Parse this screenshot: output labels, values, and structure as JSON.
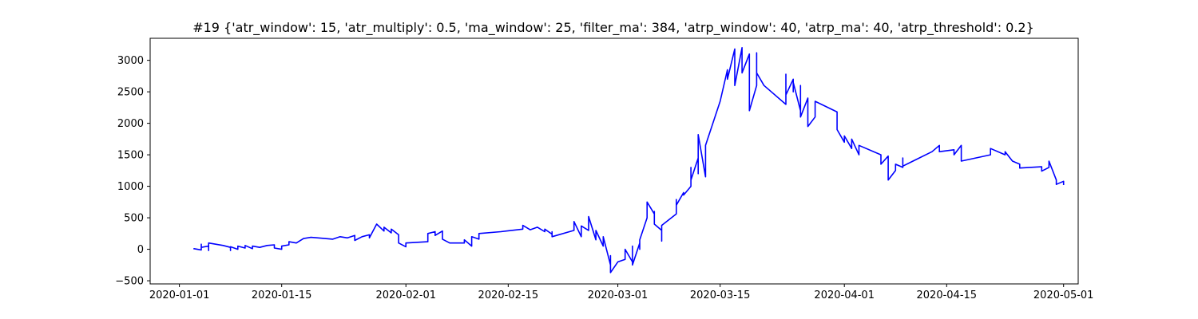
{
  "chart_data": {
    "type": "line",
    "title": "#19 {'atr_window': 15, 'atr_multiply': 0.5, 'ma_window': 25, 'filter_ma': 384, 'atrp_window': 40, 'atrp_ma': 40, 'atrp_threshold': 0.2}",
    "xlabel": "",
    "ylabel": "",
    "x_axis_type": "date",
    "xlim": [
      "2019-12-28",
      "2020-05-03"
    ],
    "ylim": [
      -550,
      3350
    ],
    "grid": false,
    "legend": "none",
    "x_ticks": [
      "2020-01-01",
      "2020-01-15",
      "2020-02-01",
      "2020-02-15",
      "2020-03-01",
      "2020-03-15",
      "2020-04-01",
      "2020-04-15",
      "2020-05-01"
    ],
    "y_ticks": [
      -500,
      0,
      500,
      1000,
      1500,
      2000,
      2500,
      3000
    ],
    "series": [
      {
        "color": "#0000ff",
        "points": [
          [
            "2020-01-03",
            0
          ],
          [
            "2020-01-03",
            10
          ],
          [
            "2020-01-04",
            -10
          ],
          [
            "2020-01-04",
            80
          ],
          [
            "2020-01-04",
            30
          ],
          [
            "2020-01-05",
            50
          ],
          [
            "2020-01-05",
            -20
          ],
          [
            "2020-01-05",
            20
          ],
          [
            "2020-01-05",
            100
          ],
          [
            "2020-01-07",
            60
          ],
          [
            "2020-01-08",
            30
          ],
          [
            "2020-01-08",
            -20
          ],
          [
            "2020-01-08",
            40
          ],
          [
            "2020-01-09",
            0
          ],
          [
            "2020-01-09",
            50
          ],
          [
            "2020-01-10",
            20
          ],
          [
            "2020-01-10",
            60
          ],
          [
            "2020-01-11",
            10
          ],
          [
            "2020-01-11",
            50
          ],
          [
            "2020-01-12",
            30
          ],
          [
            "2020-01-13",
            60
          ],
          [
            "2020-01-14",
            70
          ],
          [
            "2020-01-14",
            20
          ],
          [
            "2020-01-15",
            0
          ],
          [
            "2020-01-15",
            50
          ],
          [
            "2020-01-16",
            70
          ],
          [
            "2020-01-16",
            120
          ],
          [
            "2020-01-17",
            100
          ],
          [
            "2020-01-18",
            170
          ],
          [
            "2020-01-19",
            190
          ],
          [
            "2020-01-20",
            180
          ],
          [
            "2020-01-22",
            160
          ],
          [
            "2020-01-23",
            200
          ],
          [
            "2020-01-24",
            180
          ],
          [
            "2020-01-25",
            220
          ],
          [
            "2020-01-25",
            140
          ],
          [
            "2020-01-26",
            200
          ],
          [
            "2020-01-27",
            230
          ],
          [
            "2020-01-27",
            180
          ],
          [
            "2020-01-28",
            400
          ],
          [
            "2020-01-29",
            290
          ],
          [
            "2020-01-29",
            350
          ],
          [
            "2020-01-30",
            260
          ],
          [
            "2020-01-30",
            320
          ],
          [
            "2020-01-31",
            230
          ],
          [
            "2020-01-31",
            100
          ],
          [
            "2020-02-01",
            40
          ],
          [
            "2020-02-01",
            100
          ],
          [
            "2020-02-04",
            120
          ],
          [
            "2020-02-04",
            250
          ],
          [
            "2020-02-05",
            280
          ],
          [
            "2020-02-05",
            220
          ],
          [
            "2020-02-06",
            290
          ],
          [
            "2020-02-06",
            160
          ],
          [
            "2020-02-07",
            100
          ],
          [
            "2020-02-09",
            100
          ],
          [
            "2020-02-09",
            150
          ],
          [
            "2020-02-10",
            50
          ],
          [
            "2020-02-10",
            200
          ],
          [
            "2020-02-11",
            160
          ],
          [
            "2020-02-11",
            250
          ],
          [
            "2020-02-14",
            280
          ],
          [
            "2020-02-17",
            320
          ],
          [
            "2020-02-17",
            380
          ],
          [
            "2020-02-18",
            310
          ],
          [
            "2020-02-19",
            350
          ],
          [
            "2020-02-20",
            280
          ],
          [
            "2020-02-20",
            320
          ],
          [
            "2020-02-21",
            240
          ],
          [
            "2020-02-21",
            280
          ],
          [
            "2020-02-21",
            200
          ],
          [
            "2020-02-24",
            300
          ],
          [
            "2020-02-24",
            440
          ],
          [
            "2020-02-25",
            200
          ],
          [
            "2020-02-25",
            370
          ],
          [
            "2020-02-26",
            300
          ],
          [
            "2020-02-26",
            520
          ],
          [
            "2020-02-27",
            150
          ],
          [
            "2020-02-27",
            300
          ],
          [
            "2020-02-28",
            50
          ],
          [
            "2020-02-28",
            200
          ],
          [
            "2020-02-29",
            -250
          ],
          [
            "2020-02-29",
            -100
          ],
          [
            "2020-02-29",
            -370
          ],
          [
            "2020-03-01",
            -200
          ],
          [
            "2020-03-02",
            -160
          ],
          [
            "2020-03-02",
            0
          ],
          [
            "2020-03-03",
            -200
          ],
          [
            "2020-03-03",
            50
          ],
          [
            "2020-03-03",
            -250
          ],
          [
            "2020-03-04",
            100
          ],
          [
            "2020-03-04",
            0
          ],
          [
            "2020-03-04",
            150
          ],
          [
            "2020-03-05",
            500
          ],
          [
            "2020-03-05",
            750
          ],
          [
            "2020-03-06",
            560
          ],
          [
            "2020-03-06",
            600
          ],
          [
            "2020-03-06",
            400
          ],
          [
            "2020-03-07",
            300
          ],
          [
            "2020-03-07",
            350
          ],
          [
            "2020-03-07",
            130
          ],
          [
            "2020-03-07",
            380
          ],
          [
            "2020-03-09",
            560
          ],
          [
            "2020-03-09",
            790
          ],
          [
            "2020-03-09",
            700
          ],
          [
            "2020-03-10",
            900
          ],
          [
            "2020-03-10",
            860
          ],
          [
            "2020-03-11",
            1000
          ],
          [
            "2020-03-11",
            1300
          ],
          [
            "2020-03-11",
            1100
          ],
          [
            "2020-03-12",
            1450
          ],
          [
            "2020-03-12",
            1200
          ],
          [
            "2020-03-12",
            1820
          ],
          [
            "2020-03-13",
            1150
          ],
          [
            "2020-03-13",
            1450
          ],
          [
            "2020-03-13",
            1650
          ],
          [
            "2020-03-15",
            2350
          ],
          [
            "2020-03-16",
            2850
          ],
          [
            "2020-03-16",
            2700
          ],
          [
            "2020-03-17",
            3180
          ],
          [
            "2020-03-17",
            2600
          ],
          [
            "2020-03-18",
            3200
          ],
          [
            "2020-03-18",
            2800
          ],
          [
            "2020-03-19",
            3100
          ],
          [
            "2020-03-19",
            2550
          ],
          [
            "2020-03-19",
            2200
          ],
          [
            "2020-03-20",
            2600
          ],
          [
            "2020-03-20",
            3120
          ],
          [
            "2020-03-20",
            2800
          ],
          [
            "2020-03-21",
            2600
          ],
          [
            "2020-03-24",
            2300
          ],
          [
            "2020-03-24",
            2780
          ],
          [
            "2020-03-24",
            2450
          ],
          [
            "2020-03-25",
            2700
          ],
          [
            "2020-03-25",
            2500
          ],
          [
            "2020-03-25",
            2650
          ],
          [
            "2020-03-26",
            2200
          ],
          [
            "2020-03-26",
            2600
          ],
          [
            "2020-03-26",
            2100
          ],
          [
            "2020-03-27",
            2400
          ],
          [
            "2020-03-27",
            1950
          ],
          [
            "2020-03-28",
            2100
          ],
          [
            "2020-03-28",
            2350
          ],
          [
            "2020-03-31",
            2180
          ],
          [
            "2020-03-31",
            1900
          ],
          [
            "2020-04-01",
            1700
          ],
          [
            "2020-04-01",
            1800
          ],
          [
            "2020-04-02",
            1600
          ],
          [
            "2020-04-02",
            1750
          ],
          [
            "2020-04-03",
            1500
          ],
          [
            "2020-04-03",
            1650
          ],
          [
            "2020-04-06",
            1500
          ],
          [
            "2020-04-06",
            1350
          ],
          [
            "2020-04-07",
            1480
          ],
          [
            "2020-04-07",
            1250
          ],
          [
            "2020-04-07",
            1100
          ],
          [
            "2020-04-08",
            1250
          ],
          [
            "2020-04-08",
            1350
          ],
          [
            "2020-04-09",
            1300
          ],
          [
            "2020-04-09",
            1450
          ],
          [
            "2020-04-09",
            1320
          ],
          [
            "2020-04-13",
            1550
          ],
          [
            "2020-04-14",
            1650
          ],
          [
            "2020-04-14",
            1550
          ],
          [
            "2020-04-16",
            1580
          ],
          [
            "2020-04-16",
            1500
          ],
          [
            "2020-04-17",
            1650
          ],
          [
            "2020-04-17",
            1400
          ],
          [
            "2020-04-21",
            1500
          ],
          [
            "2020-04-21",
            1600
          ],
          [
            "2020-04-23",
            1500
          ],
          [
            "2020-04-23",
            1550
          ],
          [
            "2020-04-24",
            1400
          ],
          [
            "2020-04-25",
            1350
          ],
          [
            "2020-04-25",
            1290
          ],
          [
            "2020-04-28",
            1310
          ],
          [
            "2020-04-28",
            1240
          ],
          [
            "2020-04-29",
            1300
          ],
          [
            "2020-04-29",
            1400
          ],
          [
            "2020-04-30",
            1100
          ],
          [
            "2020-04-30",
            1030
          ],
          [
            "2020-05-01",
            1080
          ],
          [
            "2020-05-01",
            1020
          ]
        ]
      }
    ]
  }
}
